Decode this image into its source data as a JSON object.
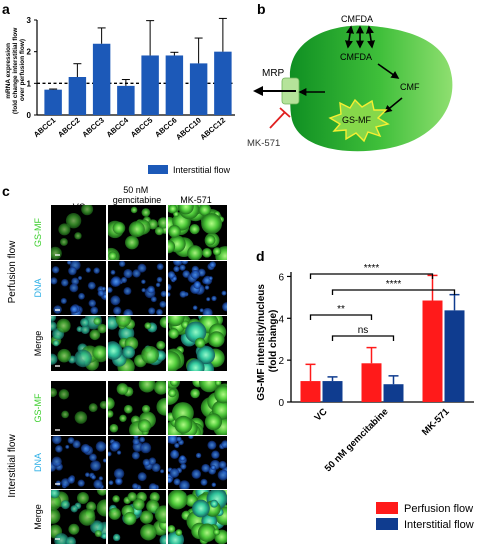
{
  "panels": {
    "a": "a",
    "b": "b",
    "c": "c",
    "d": "d"
  },
  "panel_a": {
    "ylabel_lines": [
      "mRNA expression",
      "(fold change interstitial flow",
      "over perfusion flow)"
    ],
    "legend": "Interstitial flow"
  },
  "panel_b": {
    "labels": {
      "cmfda_top": "CMFDA",
      "cmfda_inner": "CMFDA",
      "cmf": "CMF",
      "gsmf": "GS-MF",
      "mrp": "MRP",
      "mk571": "MK-571"
    },
    "colors": {
      "cell_light": "#7fd86b",
      "cell_dark": "#0d8a1f",
      "channel": "#b5e39a"
    }
  },
  "panel_c": {
    "columns": [
      "VC",
      "50 nM\ngemcitabine",
      "MK-571"
    ],
    "col_vc": "VC",
    "col_gem_line1": "50 nM",
    "col_gem_line2": "gemcitabine",
    "col_mk": "MK-571",
    "group_perfusion": "Perfusion  flow",
    "group_interstitial": "Interstitial  flow",
    "row_labels": {
      "gsmf": "GS-MF",
      "dna": "DNA",
      "merge": "Merge"
    },
    "colors": {
      "gsmf": "#3ccf2d",
      "dna": "#2fb0e6",
      "merge": "#000000"
    }
  },
  "panel_d": {
    "ylabel_lines": [
      "GS-MF intensity/nucleus",
      "(fold change)"
    ],
    "significance": [
      "**",
      "ns",
      "****",
      "****"
    ],
    "legend": [
      "Perfusion flow",
      "Interstitial flow"
    ]
  },
  "chart_data": [
    {
      "type": "bar",
      "panel": "a",
      "categories": [
        "ABCC1",
        "ABCC2",
        "ABCC3",
        "ABCC4",
        "ABCC5",
        "ABCC6",
        "ABCC10",
        "ABCC12"
      ],
      "series": [
        {
          "name": "Interstitial flow",
          "values": [
            0.8,
            1.2,
            2.25,
            0.92,
            1.88,
            1.88,
            1.63,
            2.0
          ],
          "errors": [
            0.02,
            0.42,
            0.5,
            0.2,
            1.1,
            0.1,
            0.8,
            1.05
          ],
          "color": "#1c59b8"
        }
      ],
      "reference_line": 1,
      "ylim": [
        0,
        3
      ],
      "yticks": [
        0,
        1,
        2,
        3
      ]
    },
    {
      "type": "bar",
      "panel": "d",
      "categories": [
        "VC",
        "50 nM gemcitabine",
        "MK-571"
      ],
      "series": [
        {
          "name": "Perfusion flow",
          "values": [
            1.0,
            1.85,
            4.85
          ],
          "errors": [
            0.8,
            0.75,
            1.2
          ],
          "color": "#ff1a1a"
        },
        {
          "name": "Interstitial flow",
          "values": [
            1.0,
            0.85,
            4.38
          ],
          "errors": [
            0.2,
            0.4,
            0.75
          ],
          "color": "#0f3c8f"
        }
      ],
      "ylim": [
        0,
        6.5
      ],
      "yticks": [
        0,
        2,
        4,
        6
      ]
    }
  ]
}
